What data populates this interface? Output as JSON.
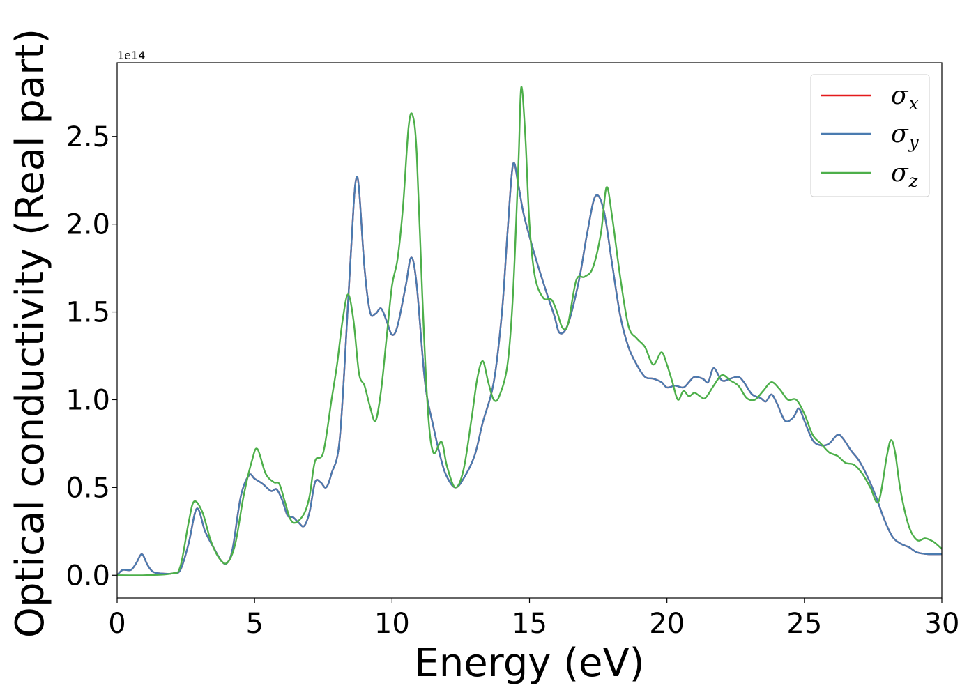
{
  "chart_data": {
    "type": "line",
    "xlabel": "Energy (eV)",
    "ylabel": "Optical conductivity (Real part)",
    "y_offset_text": "1e14",
    "xlim": [
      0,
      30
    ],
    "ylim": [
      -0.13,
      2.92
    ],
    "xticks": [
      0,
      5,
      10,
      15,
      20,
      25,
      30
    ],
    "xtick_labels": [
      "0",
      "5",
      "10",
      "15",
      "20",
      "25",
      "30"
    ],
    "yticks": [
      0.0,
      0.5,
      1.0,
      1.5,
      2.0,
      2.5
    ],
    "ytick_labels": [
      "0.0",
      "0.5",
      "1.0",
      "1.5",
      "2.0",
      "2.5"
    ],
    "grid": false,
    "legend_position": "top-right",
    "series": [
      {
        "key": "x",
        "name": "σ",
        "subscript": "x",
        "color": "#e41a1c",
        "x": [
          0,
          0.2,
          0.5,
          0.7,
          0.9,
          1.1,
          1.3,
          1.6,
          2.0,
          2.3,
          2.6,
          2.9,
          3.2,
          3.5,
          3.8,
          4.0,
          4.2,
          4.5,
          4.8,
          5.0,
          5.3,
          5.6,
          5.8,
          6.0,
          6.2,
          6.4,
          6.6,
          6.8,
          7.0,
          7.2,
          7.4,
          7.6,
          7.8,
          8.1,
          8.4,
          8.6,
          8.7,
          8.8,
          9.0,
          9.2,
          9.4,
          9.6,
          9.8,
          10.0,
          10.2,
          10.5,
          10.7,
          10.9,
          11.2,
          11.5,
          11.8,
          12.0,
          12.3,
          12.6,
          13.0,
          13.3,
          13.7,
          14.0,
          14.2,
          14.4,
          14.6,
          14.8,
          15.2,
          15.6,
          15.9,
          16.1,
          16.4,
          16.8,
          17.1,
          17.4,
          17.7,
          18.0,
          18.3,
          18.6,
          18.9,
          19.2,
          19.5,
          19.8,
          20.0,
          20.3,
          20.6,
          20.8,
          21.0,
          21.3,
          21.5,
          21.7,
          22.0,
          22.3,
          22.6,
          22.8,
          23.1,
          23.4,
          23.6,
          23.8,
          24.0,
          24.3,
          24.6,
          24.8,
          25.0,
          25.3,
          25.6,
          25.9,
          26.2,
          26.4,
          26.7,
          27.0,
          27.3,
          27.6,
          27.9,
          28.2,
          28.5,
          28.8,
          29.1,
          29.5,
          30.0
        ],
        "y": [
          0.0,
          0.03,
          0.03,
          0.07,
          0.12,
          0.06,
          0.02,
          0.01,
          0.01,
          0.03,
          0.18,
          0.38,
          0.25,
          0.16,
          0.08,
          0.07,
          0.15,
          0.45,
          0.57,
          0.55,
          0.52,
          0.48,
          0.49,
          0.43,
          0.34,
          0.33,
          0.3,
          0.28,
          0.36,
          0.53,
          0.53,
          0.5,
          0.58,
          0.78,
          1.55,
          2.1,
          2.26,
          2.2,
          1.75,
          1.5,
          1.49,
          1.52,
          1.45,
          1.37,
          1.42,
          1.65,
          1.81,
          1.65,
          1.1,
          0.85,
          0.65,
          0.56,
          0.5,
          0.55,
          0.68,
          0.87,
          1.1,
          1.5,
          1.95,
          2.34,
          2.22,
          2.05,
          1.82,
          1.62,
          1.48,
          1.38,
          1.43,
          1.68,
          1.95,
          2.16,
          2.08,
          1.78,
          1.48,
          1.3,
          1.2,
          1.13,
          1.12,
          1.1,
          1.07,
          1.08,
          1.07,
          1.1,
          1.13,
          1.12,
          1.1,
          1.18,
          1.11,
          1.12,
          1.13,
          1.1,
          1.03,
          1.01,
          0.99,
          1.03,
          0.98,
          0.88,
          0.9,
          0.95,
          0.88,
          0.77,
          0.74,
          0.75,
          0.8,
          0.78,
          0.71,
          0.65,
          0.56,
          0.45,
          0.32,
          0.22,
          0.18,
          0.16,
          0.13,
          0.12,
          0.12
        ]
      },
      {
        "key": "y",
        "name": "σ",
        "subscript": "y",
        "color": "#4a7bb0",
        "x": [
          0,
          0.2,
          0.5,
          0.7,
          0.9,
          1.1,
          1.3,
          1.6,
          2.0,
          2.3,
          2.6,
          2.9,
          3.2,
          3.5,
          3.8,
          4.0,
          4.2,
          4.5,
          4.8,
          5.0,
          5.3,
          5.6,
          5.8,
          6.0,
          6.2,
          6.4,
          6.6,
          6.8,
          7.0,
          7.2,
          7.4,
          7.6,
          7.8,
          8.1,
          8.4,
          8.6,
          8.7,
          8.8,
          9.0,
          9.2,
          9.4,
          9.6,
          9.8,
          10.0,
          10.2,
          10.5,
          10.7,
          10.9,
          11.2,
          11.5,
          11.8,
          12.0,
          12.3,
          12.6,
          13.0,
          13.3,
          13.7,
          14.0,
          14.2,
          14.4,
          14.6,
          14.8,
          15.2,
          15.6,
          15.9,
          16.1,
          16.4,
          16.8,
          17.1,
          17.4,
          17.7,
          18.0,
          18.3,
          18.6,
          18.9,
          19.2,
          19.5,
          19.8,
          20.0,
          20.3,
          20.6,
          20.8,
          21.0,
          21.3,
          21.5,
          21.7,
          22.0,
          22.3,
          22.6,
          22.8,
          23.1,
          23.4,
          23.6,
          23.8,
          24.0,
          24.3,
          24.6,
          24.8,
          25.0,
          25.3,
          25.6,
          25.9,
          26.2,
          26.4,
          26.7,
          27.0,
          27.3,
          27.6,
          27.9,
          28.2,
          28.5,
          28.8,
          29.1,
          29.5,
          30.0
        ],
        "y": [
          0.0,
          0.03,
          0.03,
          0.07,
          0.12,
          0.06,
          0.02,
          0.01,
          0.01,
          0.03,
          0.18,
          0.38,
          0.25,
          0.16,
          0.08,
          0.07,
          0.15,
          0.45,
          0.57,
          0.55,
          0.52,
          0.48,
          0.49,
          0.43,
          0.34,
          0.33,
          0.3,
          0.28,
          0.36,
          0.53,
          0.53,
          0.5,
          0.58,
          0.78,
          1.55,
          2.1,
          2.26,
          2.2,
          1.75,
          1.5,
          1.49,
          1.52,
          1.45,
          1.37,
          1.42,
          1.65,
          1.81,
          1.65,
          1.1,
          0.85,
          0.65,
          0.56,
          0.5,
          0.55,
          0.68,
          0.87,
          1.1,
          1.5,
          1.95,
          2.34,
          2.22,
          2.05,
          1.82,
          1.62,
          1.48,
          1.38,
          1.43,
          1.68,
          1.95,
          2.16,
          2.08,
          1.78,
          1.48,
          1.3,
          1.2,
          1.13,
          1.12,
          1.1,
          1.07,
          1.08,
          1.07,
          1.1,
          1.13,
          1.12,
          1.1,
          1.18,
          1.11,
          1.12,
          1.13,
          1.1,
          1.03,
          1.01,
          0.99,
          1.03,
          0.98,
          0.88,
          0.9,
          0.95,
          0.88,
          0.77,
          0.74,
          0.75,
          0.8,
          0.78,
          0.71,
          0.65,
          0.56,
          0.45,
          0.32,
          0.22,
          0.18,
          0.16,
          0.13,
          0.12,
          0.12
        ]
      },
      {
        "key": "z",
        "name": "σ",
        "subscript": "z",
        "color": "#4daf4a",
        "x": [
          0,
          1.0,
          2.0,
          2.3,
          2.6,
          2.8,
          3.1,
          3.4,
          3.7,
          4.0,
          4.3,
          4.6,
          4.9,
          5.1,
          5.4,
          5.7,
          5.9,
          6.1,
          6.3,
          6.5,
          6.8,
          7.0,
          7.2,
          7.5,
          7.8,
          8.0,
          8.2,
          8.4,
          8.6,
          8.8,
          9.0,
          9.2,
          9.4,
          9.6,
          9.8,
          10.0,
          10.2,
          10.4,
          10.6,
          10.75,
          10.9,
          11.1,
          11.3,
          11.5,
          11.8,
          12.0,
          12.3,
          12.6,
          12.9,
          13.1,
          13.3,
          13.5,
          13.7,
          13.9,
          14.2,
          14.4,
          14.6,
          14.7,
          14.85,
          15.0,
          15.2,
          15.5,
          15.8,
          16.0,
          16.2,
          16.4,
          16.7,
          17.0,
          17.3,
          17.6,
          17.8,
          18.0,
          18.3,
          18.6,
          18.9,
          19.2,
          19.5,
          19.8,
          20.0,
          20.2,
          20.4,
          20.6,
          20.8,
          21.0,
          21.2,
          21.4,
          21.7,
          22.0,
          22.3,
          22.6,
          22.9,
          23.2,
          23.5,
          23.8,
          24.1,
          24.4,
          24.7,
          25.0,
          25.3,
          25.6,
          25.9,
          26.2,
          26.5,
          26.8,
          27.1,
          27.4,
          27.7,
          28.0,
          28.15,
          28.3,
          28.5,
          28.8,
          29.1,
          29.4,
          29.7,
          30.0
        ],
        "y": [
          0.0,
          0.0,
          0.01,
          0.05,
          0.3,
          0.42,
          0.36,
          0.2,
          0.1,
          0.07,
          0.18,
          0.45,
          0.65,
          0.72,
          0.58,
          0.53,
          0.52,
          0.42,
          0.32,
          0.3,
          0.35,
          0.45,
          0.65,
          0.7,
          1.0,
          1.2,
          1.45,
          1.6,
          1.45,
          1.15,
          1.08,
          0.96,
          0.88,
          1.05,
          1.35,
          1.65,
          1.8,
          2.1,
          2.55,
          2.62,
          2.4,
          1.6,
          0.95,
          0.7,
          0.76,
          0.62,
          0.5,
          0.6,
          0.9,
          1.12,
          1.22,
          1.1,
          1.0,
          1.02,
          1.2,
          1.6,
          2.35,
          2.78,
          2.5,
          2.0,
          1.7,
          1.58,
          1.57,
          1.5,
          1.41,
          1.43,
          1.68,
          1.7,
          1.75,
          1.95,
          2.21,
          2.05,
          1.7,
          1.42,
          1.35,
          1.3,
          1.2,
          1.27,
          1.2,
          1.1,
          1.0,
          1.05,
          1.02,
          1.04,
          1.02,
          1.01,
          1.08,
          1.14,
          1.11,
          1.08,
          1.01,
          1.0,
          1.05,
          1.1,
          1.06,
          1.0,
          1.0,
          0.92,
          0.8,
          0.75,
          0.7,
          0.68,
          0.64,
          0.63,
          0.58,
          0.5,
          0.42,
          0.68,
          0.77,
          0.7,
          0.48,
          0.28,
          0.2,
          0.21,
          0.19,
          0.15
        ]
      }
    ]
  }
}
